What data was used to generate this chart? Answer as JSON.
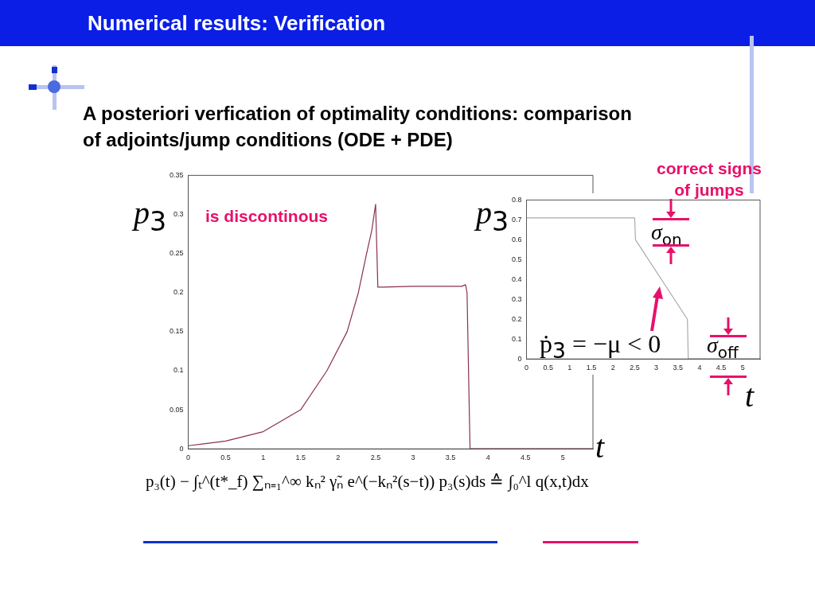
{
  "chart_data": [
    {
      "type": "line",
      "title": "Numerical results: Verification",
      "subtitle": "A posteriori verfication of optimality conditions: comparison of adjoints/jump conditions (ODE + PDE)",
      "xlabel": "t",
      "ylabel": "p$_{3}$",
      "annotations": [
        "is discontinous",
        "p₃(t) − ∫ₜ^(t*_f) ∑ₙ₌₁^∞ kₙ² γ̃ₙ e^(−kₙ²(s−t)) p₃(s)ds ≙ ∫₀^l q(x,t)dx"
      ],
      "series": [
        {
          "color": "#8a3050",
          "line_style": "solid",
          "x": [
            0,
            0.5,
            1,
            1.5,
            1.85,
            2.12,
            2.27,
            2.38,
            2.45,
            2.5,
            2.53,
            2.6,
            3,
            3.5,
            3.65,
            3.7,
            3.72,
            3.76,
            5.4
          ],
          "values": [
            0.004,
            0.01,
            0.022,
            0.05,
            0.1,
            0.15,
            0.2,
            0.25,
            0.28,
            0.313,
            0.207,
            0.207,
            0.208,
            0.208,
            0.208,
            0.21,
            0.2,
            0,
            0
          ]
        }
      ],
      "xlim": [
        0,
        5.4
      ],
      "ylim": [
        0,
        0.35
      ],
      "xticks": [
        0,
        0.5,
        1,
        1.5,
        2,
        2.5,
        3,
        3.5,
        4,
        4.5,
        5
      ],
      "yticks": [
        0,
        0.05,
        0.1,
        0.15,
        0.2,
        0.25,
        0.3,
        0.35
      ]
    },
    {
      "type": "line",
      "xlabel": "t",
      "ylabel": "p$_{3}$",
      "annotations": [
        "correct signs of jumps",
        "σ$_{on}$",
        "σ$_{off}$",
        "ṗ$_{3}$ = −μ < 0"
      ],
      "series": [
        {
          "color": "#aaaaaa",
          "line_style": "solid",
          "x": [
            0,
            2.5,
            2.52,
            3.72,
            3.74,
            5.4
          ],
          "values": [
            0.71,
            0.71,
            0.6,
            0.2,
            0,
            0
          ]
        }
      ],
      "xlim": [
        0,
        5.4
      ],
      "ylim": [
        0,
        0.8
      ],
      "xticks": [
        0,
        0.5,
        1,
        1.5,
        2,
        2.5,
        3,
        3.5,
        4,
        4.5,
        5
      ],
      "yticks": [
        0,
        0.1,
        0.2,
        0.3,
        0.4,
        0.5,
        0.6,
        0.7,
        0.8
      ]
    }
  ]
}
